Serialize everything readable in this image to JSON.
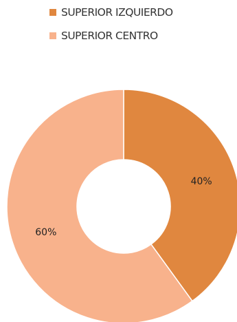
{
  "chart_data": {
    "type": "pie",
    "variant": "donut",
    "title": "",
    "legend_position": "top",
    "categories": [
      "SUPERIOR IZQUIERDO",
      "SUPERIOR CENTRO"
    ],
    "values": [
      40,
      60
    ],
    "unit": "%",
    "data_labels": [
      "40%",
      "60%"
    ],
    "colors": [
      "#E0873F",
      "#F8B28C"
    ]
  }
}
